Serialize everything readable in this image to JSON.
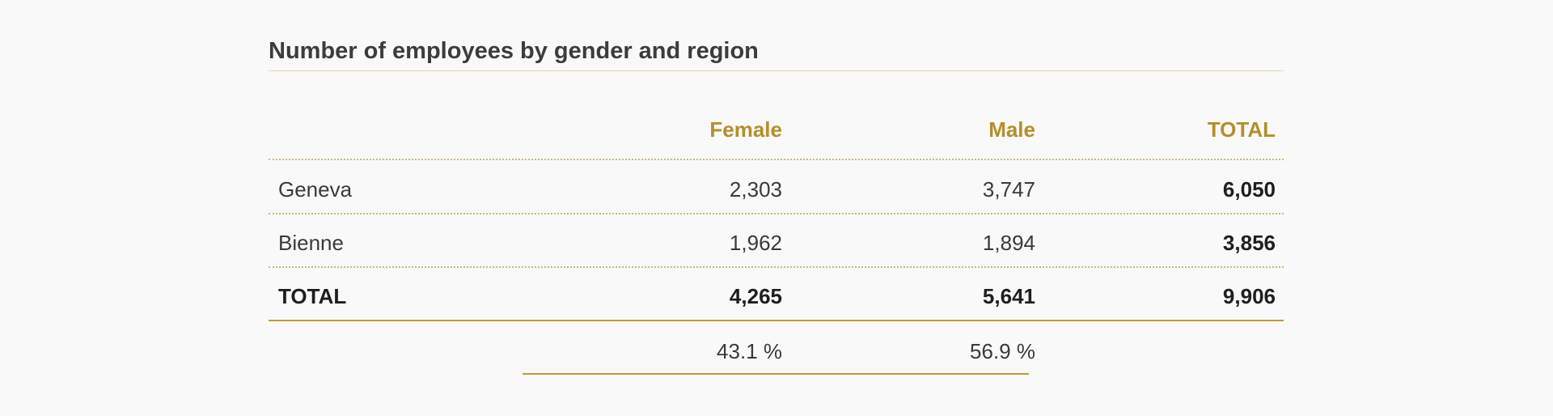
{
  "title": "Number of employees by gender and region",
  "columns": {
    "female": "Female",
    "male": "Male",
    "total": "TOTAL"
  },
  "rows": [
    {
      "label": "Geneva",
      "female": "2,303",
      "male": "3,747",
      "total": "6,050"
    },
    {
      "label": "Bienne",
      "female": "1,962",
      "male": "1,894",
      "total": "3,856"
    }
  ],
  "totals": {
    "label": "TOTAL",
    "female": "4,265",
    "male": "5,641",
    "total": "9,906"
  },
  "percentages": {
    "female": "43.1 %",
    "male": "56.9 %"
  },
  "colors": {
    "accent": "#b48f2e",
    "rule": "#c09a3c",
    "background": "#f9f9f9"
  }
}
